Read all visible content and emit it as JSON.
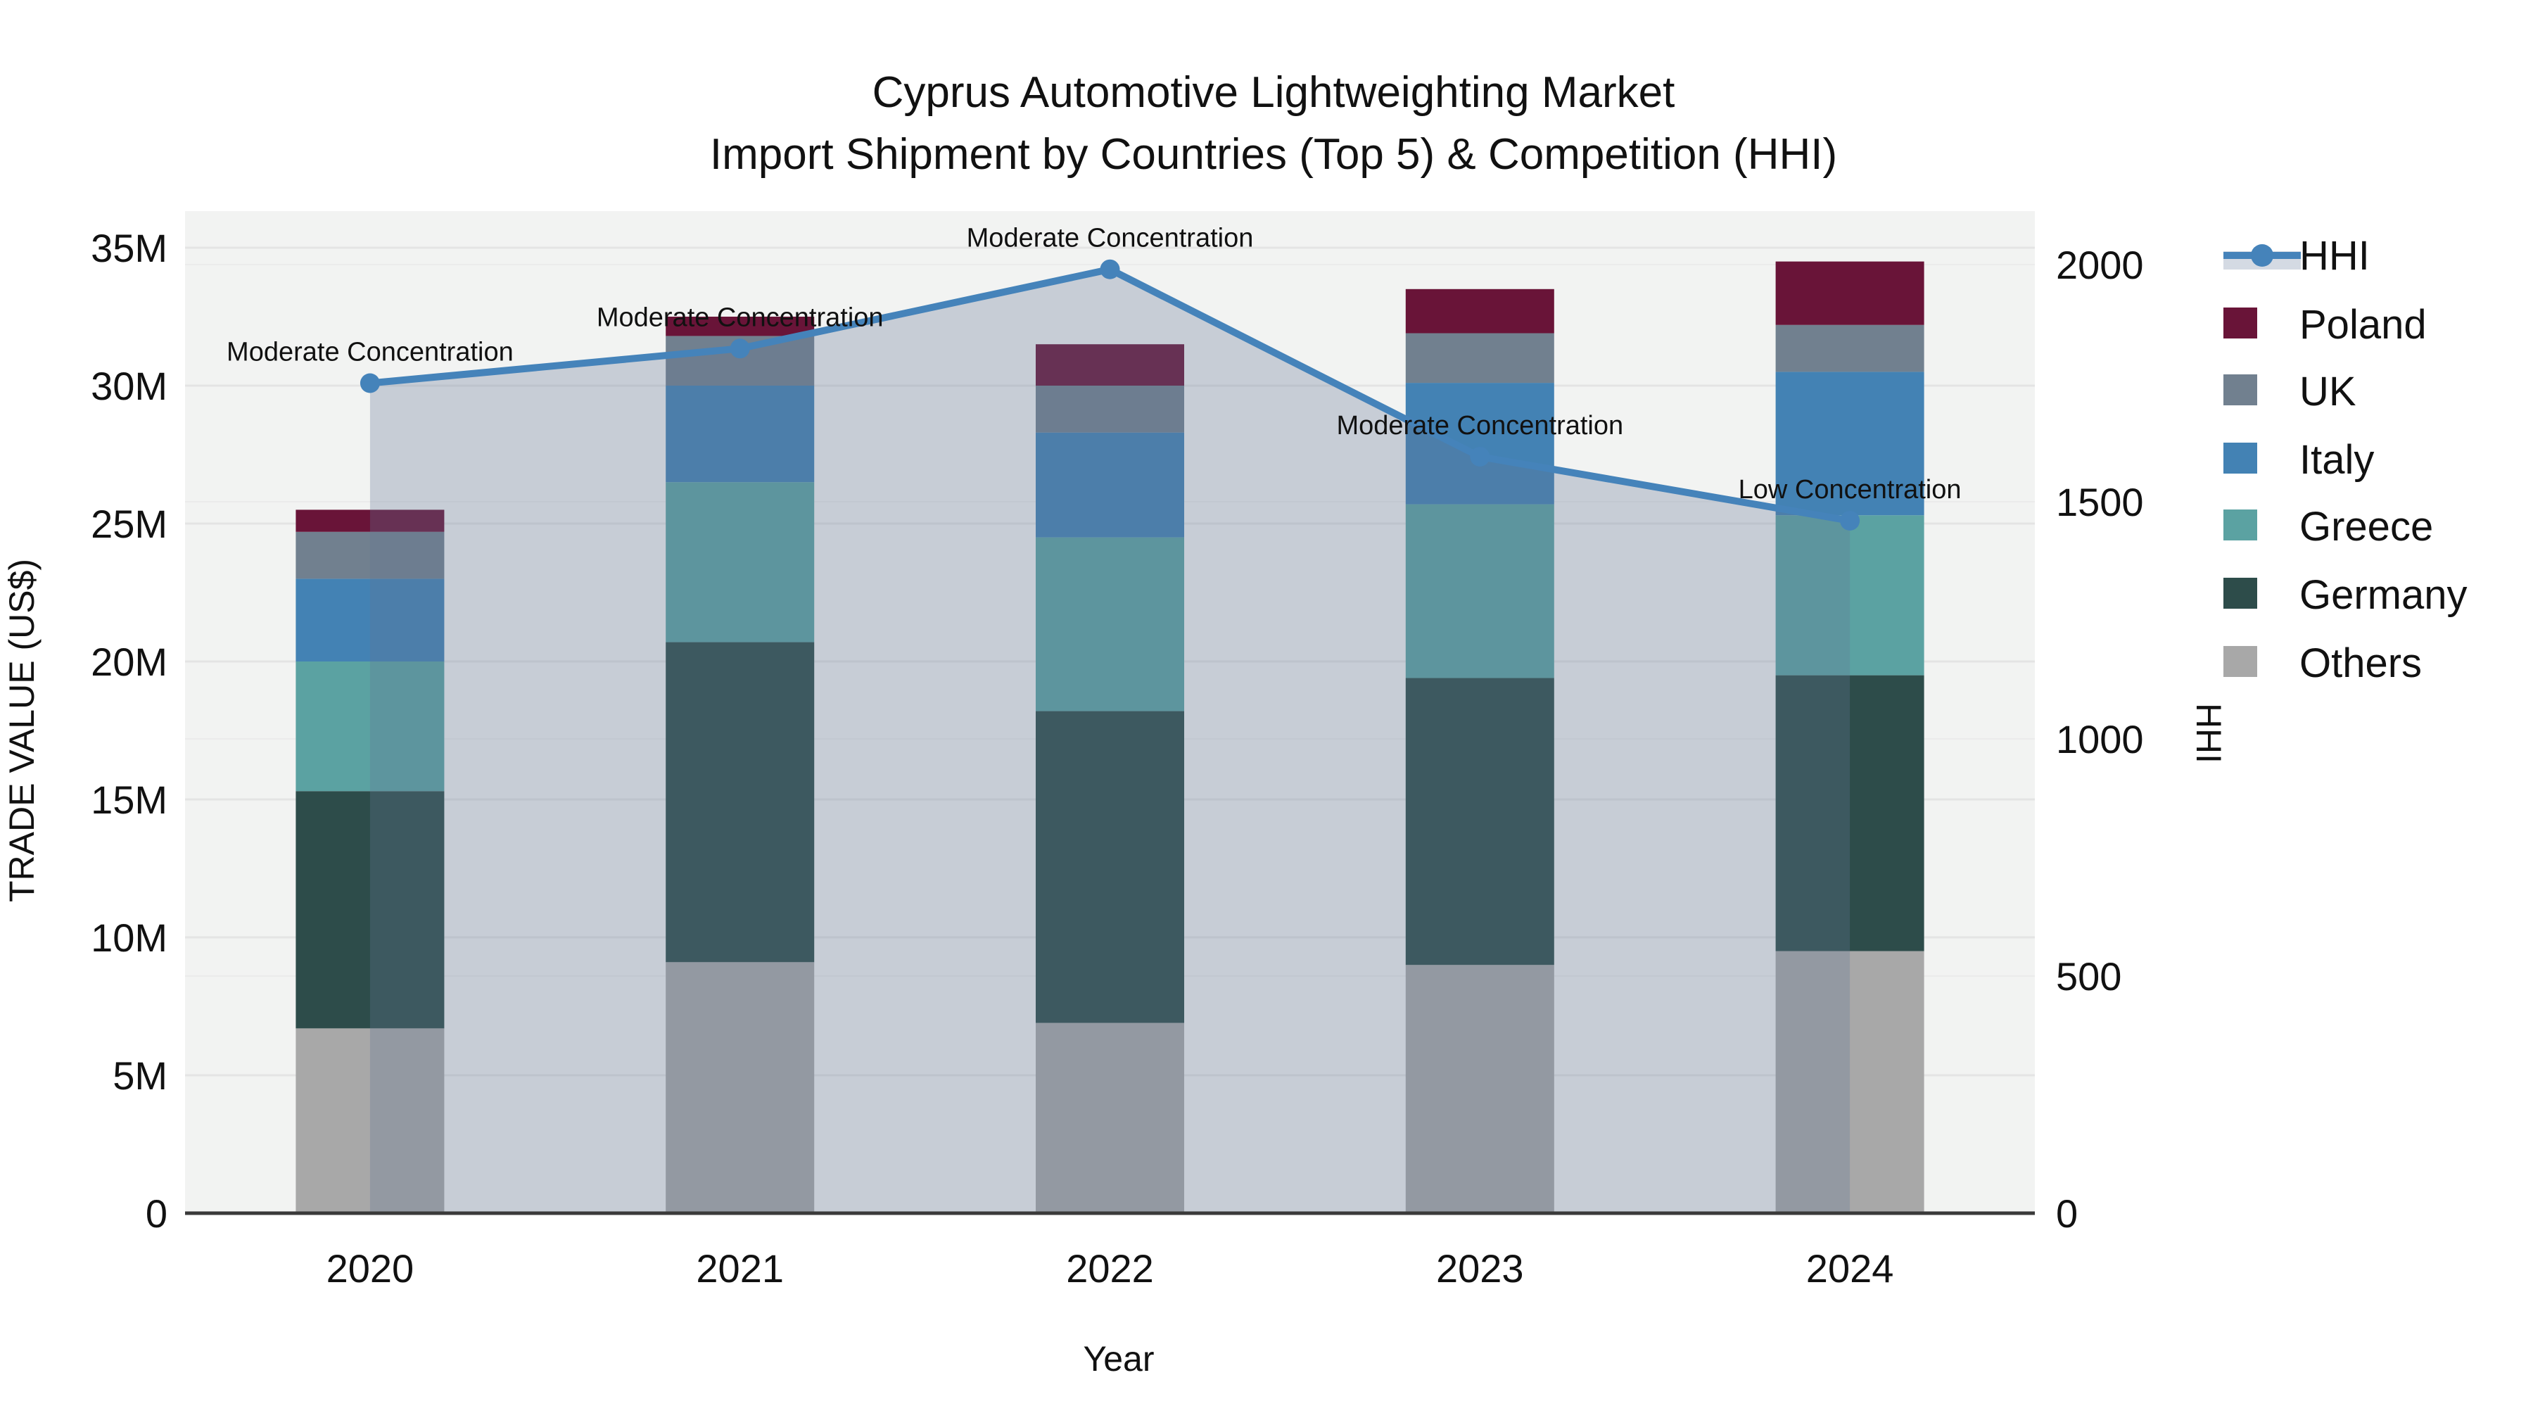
{
  "title": {
    "line1": "Cyprus Automotive Lightweighting Market",
    "line2": "Import Shipment by Countries (Top 5) & Competition (HHI)"
  },
  "axes": {
    "x": {
      "label": "Year",
      "ticks": [
        "2020",
        "2021",
        "2022",
        "2023",
        "2024"
      ]
    },
    "y_left": {
      "label": "TRADE VALUE (US$)",
      "ticks": [
        "0",
        "5M",
        "10M",
        "15M",
        "20M",
        "25M",
        "30M",
        "35M"
      ],
      "max_millions": 35
    },
    "y_right": {
      "label": "HHI",
      "ticks": [
        "0",
        "500",
        "1000",
        "1500",
        "2000"
      ],
      "max": 2000
    }
  },
  "legend": {
    "items": [
      {
        "label": "HHI",
        "type": "line",
        "color": "#4583ba"
      },
      {
        "label": "Poland",
        "type": "swatch",
        "color": "#691438"
      },
      {
        "label": "UK",
        "type": "swatch",
        "color": "#71808f"
      },
      {
        "label": "Italy",
        "type": "swatch",
        "color": "#4382b4"
      },
      {
        "label": "Greece",
        "type": "swatch",
        "color": "#5ba2a2"
      },
      {
        "label": "Germany",
        "type": "swatch",
        "color": "#2d4c4a"
      },
      {
        "label": "Others",
        "type": "swatch",
        "color": "#a8a8a8"
      }
    ]
  },
  "chart_data": {
    "type": "bar+line",
    "title": "Cyprus Automotive Lightweighting Market — Import Shipment by Countries (Top 5) & Competition (HHI)",
    "categories": [
      "2020",
      "2021",
      "2022",
      "2023",
      "2024"
    ],
    "bar_unit": "million US$",
    "stack_order_bottom_to_top": [
      "Others",
      "Germany",
      "Greece",
      "Italy",
      "UK",
      "Poland"
    ],
    "series": [
      {
        "name": "Others",
        "color": "#a8a8a8",
        "values": [
          6.7,
          9.1,
          6.9,
          9.0,
          9.5
        ]
      },
      {
        "name": "Germany",
        "color": "#2d4c4a",
        "values": [
          8.6,
          11.6,
          11.3,
          10.4,
          10.0
        ]
      },
      {
        "name": "Greece",
        "color": "#5ba2a2",
        "values": [
          4.7,
          5.8,
          6.3,
          6.3,
          5.8
        ]
      },
      {
        "name": "Italy",
        "color": "#4382b4",
        "values": [
          3.0,
          3.5,
          3.8,
          4.4,
          5.2
        ]
      },
      {
        "name": "UK",
        "color": "#71808f",
        "values": [
          1.7,
          1.8,
          1.7,
          1.8,
          1.7
        ]
      },
      {
        "name": "Poland",
        "color": "#691438",
        "values": [
          0.8,
          0.7,
          1.5,
          1.6,
          2.3
        ]
      }
    ],
    "bar_totals_millions": [
      25.5,
      32.5,
      31.5,
      33.5,
      34.5
    ],
    "hhi": {
      "name": "HHI",
      "values": [
        1750,
        1823,
        1990,
        1595,
        1460
      ],
      "axis": "right",
      "line_color": "#4583ba",
      "area_fill": "rgba(100,118,150,0.30)"
    },
    "annotations": [
      {
        "x": "2020",
        "text": "Moderate Concentration"
      },
      {
        "x": "2021",
        "text": "Moderate Concentration"
      },
      {
        "x": "2022",
        "text": "Moderate Concentration"
      },
      {
        "x": "2023",
        "text": "Moderate Concentration"
      },
      {
        "x": "2024",
        "text": "Low Concentration"
      }
    ],
    "xlabel": "Year",
    "ylabel_left": "TRADE VALUE (US$)",
    "ylabel_right": "HHI",
    "ylim_left_millions": [
      0,
      35
    ],
    "ylim_right": [
      0,
      2000
    ],
    "grid": true,
    "legend_position": "right"
  },
  "colors": {
    "plot_bg": "#f2f3f2",
    "grid_left": "#e4e4e4",
    "grid_right": "#ebebeb",
    "axis_line": "#3a3a3a",
    "text": "#111111"
  }
}
